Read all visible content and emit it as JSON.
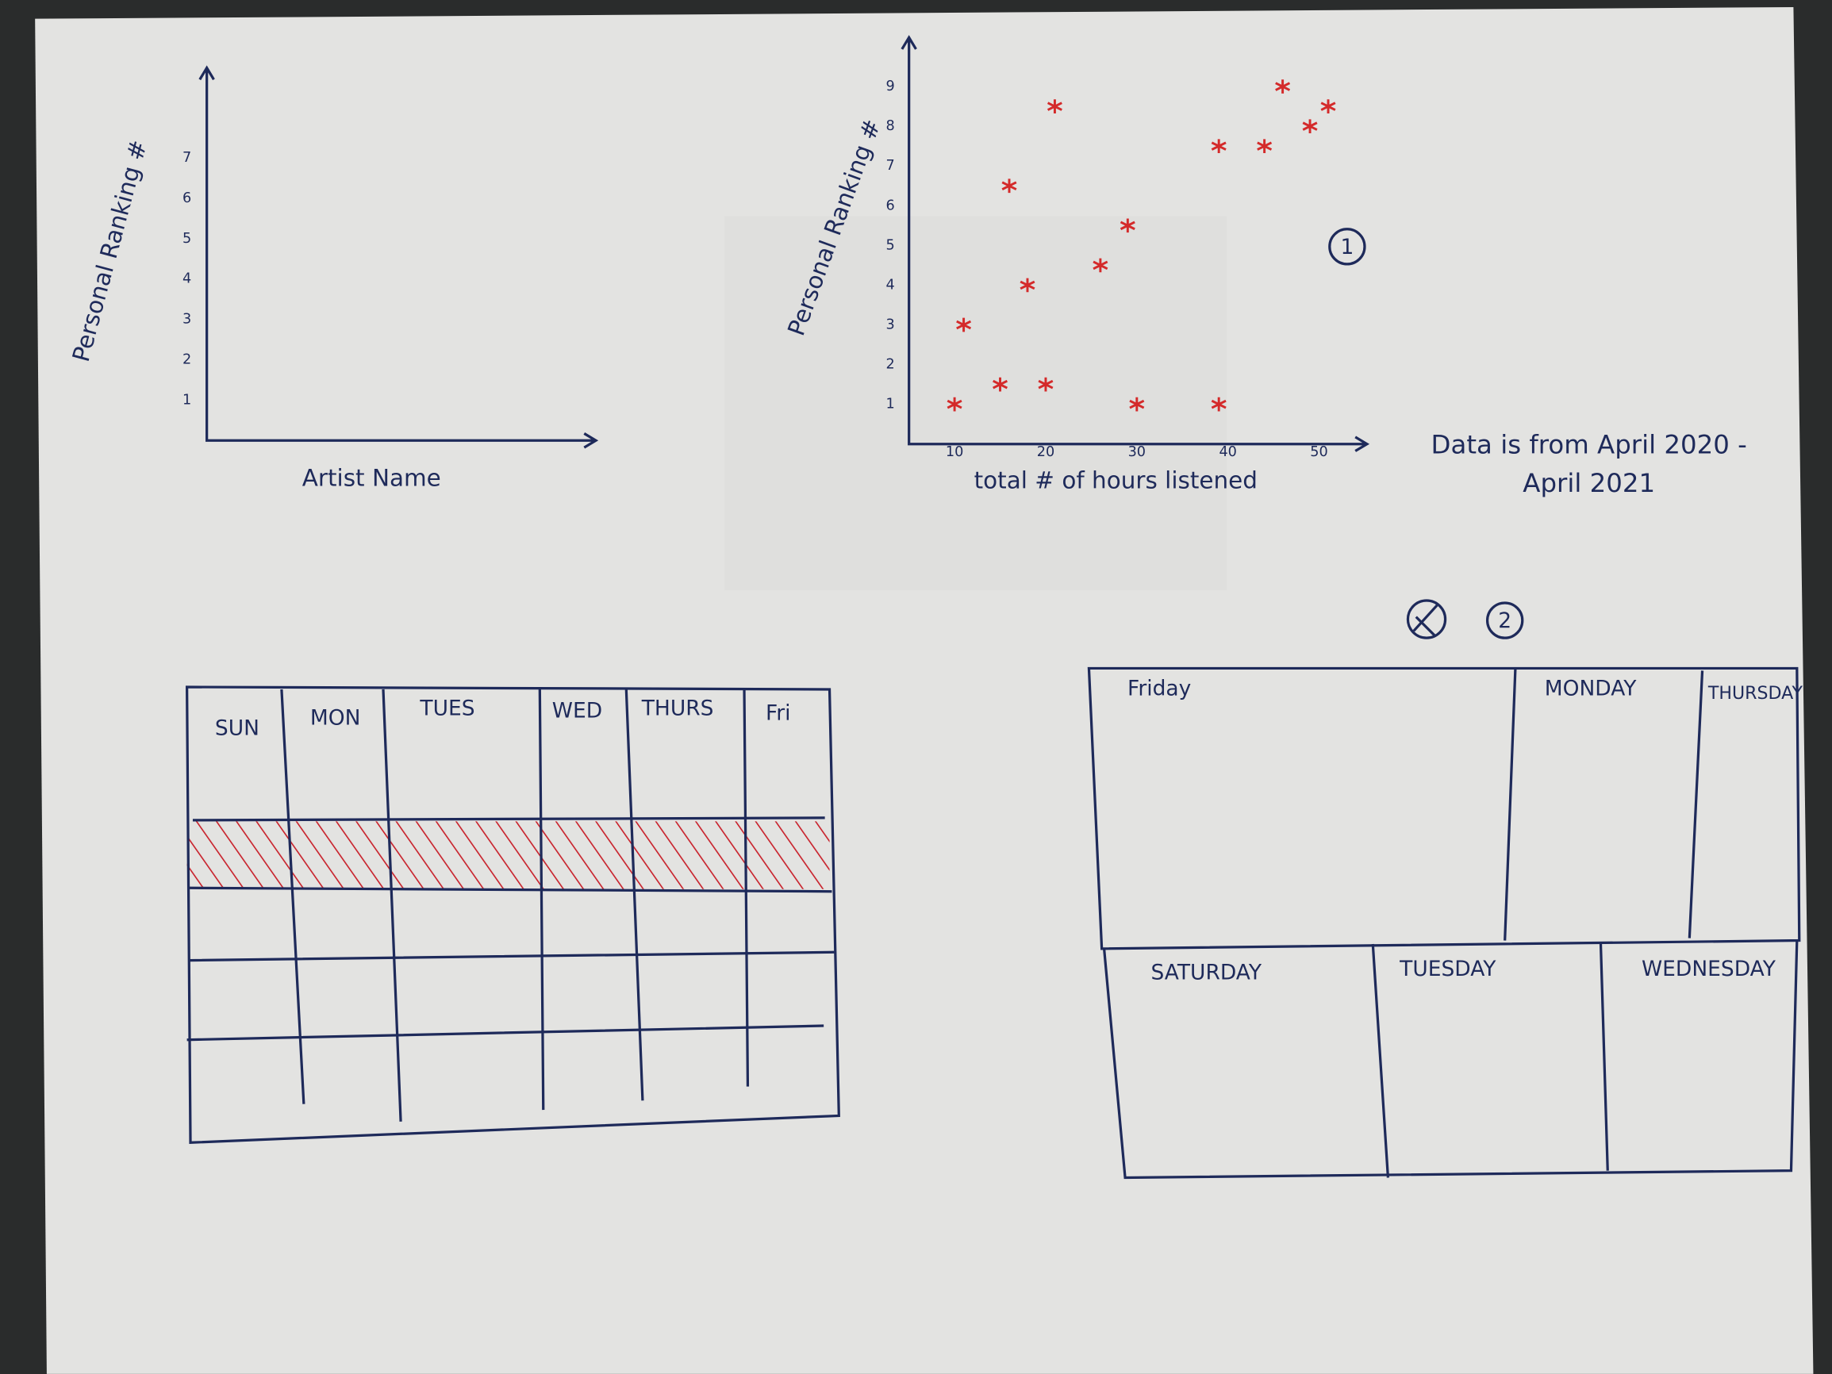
{
  "chart_data": [
    {
      "type": "bar",
      "y_label": "Personal Ranking #",
      "x_label": "Artist Name",
      "ylim": [
        0,
        9
      ],
      "yticks": [
        1,
        2,
        3,
        4,
        5,
        6,
        7
      ]
    },
    {
      "type": "scatter",
      "y_label": "Personal Ranking #",
      "x_label": "total # of hours listened",
      "x": [
        10,
        11,
        15,
        16,
        18,
        20,
        21,
        26,
        29,
        30,
        39,
        39,
        44,
        46,
        49,
        51
      ],
      "values": [
        1,
        3,
        1.5,
        6.5,
        4,
        1.5,
        8.5,
        4.5,
        5.5,
        1,
        7.5,
        1,
        7.5,
        9,
        8,
        8.5
      ],
      "color": "#d42a2a",
      "xlim": [
        5,
        55
      ],
      "ylim": [
        0,
        10
      ],
      "xticks": [
        10,
        20,
        30,
        40,
        50
      ],
      "yticks": [
        1,
        2,
        3,
        4,
        5,
        6,
        7,
        8,
        9
      ]
    }
  ],
  "annotations": {
    "marker_1": "1",
    "note": "Data is from April 2020 - April 2021",
    "marker_2": "2"
  },
  "calendar": {
    "days": [
      "SUN",
      "MON",
      "TUES",
      "WED",
      "THURS",
      "Fri"
    ]
  },
  "treemap": {
    "cells": [
      "Friday",
      "MONDAY",
      "THURSDAY",
      "SATURDAY",
      "TUESDAY",
      "WEDNESDAY"
    ]
  }
}
